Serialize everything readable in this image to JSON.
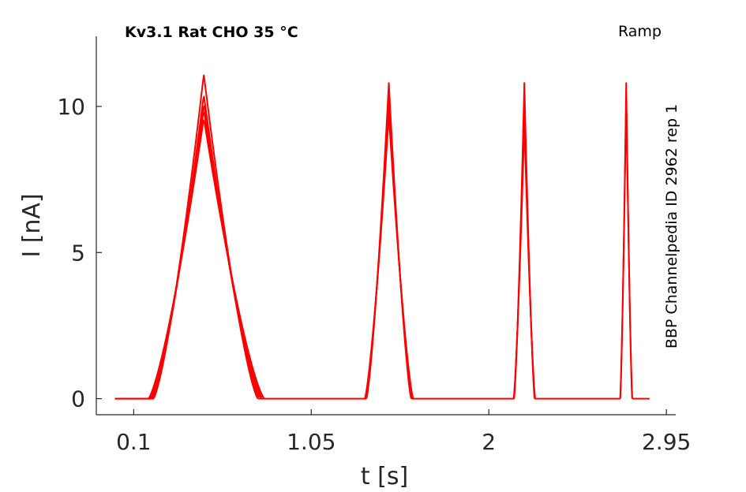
{
  "chart_data": {
    "type": "line",
    "title": "Kv3.1  Rat  CHO  35 °C",
    "protocol": "Ramp",
    "side_label": "BBP Channelpedia ID 2962 rep 1",
    "xlabel": "t [s]",
    "ylabel": "I [nA]",
    "xlim": [
      -0.1,
      3.0
    ],
    "ylim": [
      -0.55,
      12.4
    ],
    "xticks": [
      0.1,
      1.05,
      2,
      2.95
    ],
    "xtick_labels": [
      "0.1",
      "1.05",
      "2",
      "2.95"
    ],
    "yticks": [
      0,
      5,
      10
    ],
    "ytick_labels": [
      "0",
      "5",
      "10"
    ],
    "grid": false,
    "legend": "none",
    "line_color": "#ff0000",
    "baseline_range": [
      0.0,
      2.86
    ],
    "peaks": [
      {
        "center": 0.475,
        "half_width_left": 0.27,
        "half_width_right": 0.29,
        "peak_values": [
          11.1,
          10.4,
          10.1,
          9.9,
          9.6
        ]
      },
      {
        "center": 1.465,
        "half_width_left": 0.12,
        "half_width_right": 0.12,
        "peak_values": [
          10.8,
          10.3,
          10.0,
          9.7
        ]
      },
      {
        "center": 2.19,
        "half_width_left": 0.055,
        "half_width_right": 0.055,
        "peak_values": [
          10.8,
          10.0,
          9.4
        ]
      },
      {
        "center": 2.735,
        "half_width_left": 0.032,
        "half_width_right": 0.032,
        "peak_values": [
          10.8,
          10.3
        ]
      }
    ]
  }
}
